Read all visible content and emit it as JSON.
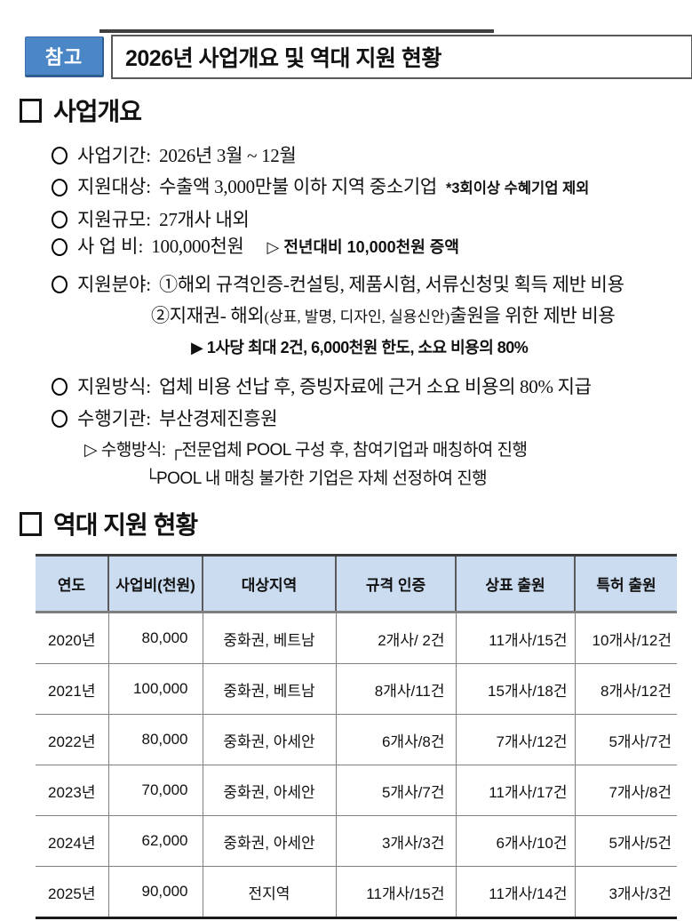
{
  "colors": {
    "badge-bg": "#4b87c7",
    "badge-edge": "#2f5e95",
    "header-bg": "#cbdcf0"
  },
  "header": {
    "badge": "참고",
    "title": "2026년 사업개요 및 역대 지원 현황"
  },
  "overview": {
    "heading": "사업개요",
    "items": [
      {
        "label": "사업기간:",
        "text": "2026년 3월 ~ 12월"
      },
      {
        "label": "지원대상:",
        "text": "수출액 3,000만불 이하 지역 중소기업",
        "note": "*3회이상 수혜기업 제외"
      },
      {
        "label": "지원규모:",
        "text": "27개사 내외"
      },
      {
        "label": "사 업 비:",
        "text": "100,000천원",
        "note": "▷ 전년대비 10,000천원 증액"
      },
      {
        "label": "지원분야:",
        "text": "①해외 규격인증-컨설팅, 제품시험, 서류신청및 획득 제반 비용",
        "line2_pre": "②지재권- 해외",
        "line2_small": "(상표, 발명, 디자인, 실용신안)",
        "line2_post": "출원을 위한 제반 비용",
        "sub": "▶ 1사당 최대 2건, 6,000천원 한도, 소요 비용의 80%"
      },
      {
        "label": "지원방식:",
        "text": "업체 비용 선납 후, 증빙자료에 근거 소요 비용의 80% 지급"
      },
      {
        "label": "수행기관:",
        "text": "부산경제진흥원",
        "sub1_label": "▷ 수행방식:",
        "sub1_text": "┌전문업체 POOL 구성 후, 참여기업과 매칭하여 진행",
        "sub2": "└POOL 내 매칭 불가한 기업은 자체 선정하여 진행"
      }
    ]
  },
  "history": {
    "heading": "역대 지원 현황",
    "table": {
      "headers": [
        "연도",
        "사업비(천원)",
        "대상지역",
        "규격 인증",
        "상표 출원",
        "특허 출원"
      ],
      "rows": [
        [
          "2020년",
          "80,000",
          "중화권, 베트남",
          "2개사/ 2건",
          "11개사/15건",
          "10개사/12건"
        ],
        [
          "2021년",
          "100,000",
          "중화권, 베트남",
          "8개사/11건",
          "15개사/18건",
          "8개사/12건"
        ],
        [
          "2022년",
          "80,000",
          "중화권, 아세안",
          "6개사/8건",
          "7개사/12건",
          "5개사/7건"
        ],
        [
          "2023년",
          "70,000",
          "중화권, 아세안",
          "5개사/7건",
          "11개사/17건",
          "7개사/8건"
        ],
        [
          "2024년",
          "62,000",
          "중화권, 아세안",
          "3개사/3건",
          "6개사/10건",
          "5개사/5건"
        ],
        [
          "2025년",
          "90,000",
          "전지역",
          "11개사/15건",
          "11개사/14건",
          "3개사/3건"
        ]
      ]
    }
  }
}
